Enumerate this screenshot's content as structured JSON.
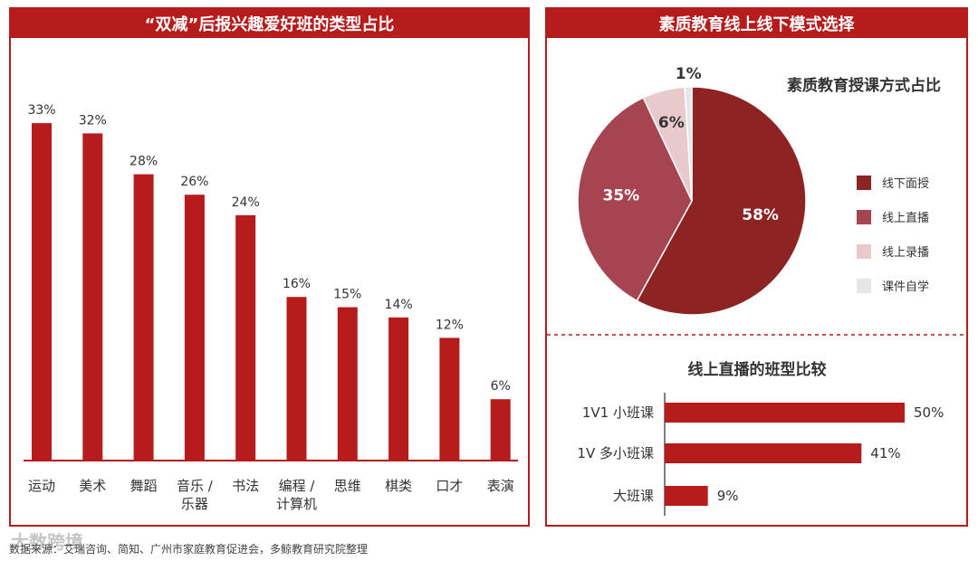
{
  "bar_panel": {
    "title": "“双减”后报兴趣爱好班的类型占比"
  },
  "mode_panel": {
    "title": "素质教育线上线下模式选择",
    "pie_title": "素质教育授课方式占比",
    "hbar_title": "线上直播的班型比较"
  },
  "source": "数据来源：艾瑞咨询、简知、广州市家庭教育促进会，多鲸教育研究院整理",
  "watermark": "大数跨境",
  "colors": {
    "bar": "#b71c1c",
    "pie_dark": "#8e2323",
    "pie_mid": "#a64452",
    "pie_light": "#e8c9cc",
    "pie_pale": "#e6e6e6"
  },
  "chart_data": [
    {
      "type": "bar",
      "title": "“双减”后报兴趣爱好班的类型占比",
      "categories": [
        "运动",
        "美术",
        "舞蹈",
        "音乐 /\n乐器",
        "书法",
        "编程 /\n计算机",
        "思维",
        "棋类",
        "口才",
        "表演"
      ],
      "values": [
        33,
        32,
        28,
        26,
        24,
        16,
        15,
        14,
        12,
        6
      ],
      "value_labels": [
        "33%",
        "32%",
        "28%",
        "26%",
        "24%",
        "16%",
        "15%",
        "14%",
        "12%",
        "6%"
      ],
      "unit": "%"
    },
    {
      "type": "pie",
      "title": "素质教育授课方式占比",
      "labels": [
        "线下面授",
        "线上直播",
        "线上录播",
        "课件自学"
      ],
      "values": [
        58,
        35,
        6,
        1
      ],
      "value_labels": [
        "58%",
        "35%",
        "6%",
        "1%"
      ],
      "colors": [
        "#8e2323",
        "#a64452",
        "#e8c9cc",
        "#e6e6e6"
      ],
      "legend": "right"
    },
    {
      "type": "bar",
      "orientation": "horizontal",
      "title": "线上直播的班型比较",
      "categories": [
        "1V1 小班课",
        "1V 多小班课",
        "大班课"
      ],
      "values": [
        50,
        41,
        9
      ],
      "value_labels": [
        "50%",
        "41%",
        "9%"
      ]
    }
  ]
}
